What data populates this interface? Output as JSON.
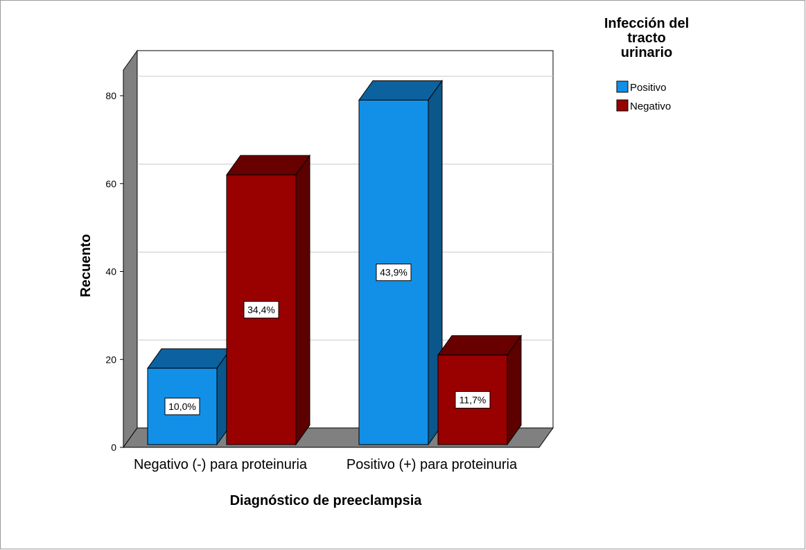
{
  "chart_data": {
    "type": "bar3d",
    "x_label": "Diagnóstico de preeclampsia",
    "y_label": "Recuento",
    "legend_title": "Infección del tracto urinario",
    "categories": [
      "Negativo (-) para proteinuria",
      "Positivo (+) para proteinuria"
    ],
    "series": [
      {
        "name": "Positivo",
        "color": "#1290e8",
        "values": [
          18,
          79
        ],
        "percentages": [
          10.0,
          43.9
        ],
        "percentage_labels": [
          "10,0%",
          "43,9%"
        ]
      },
      {
        "name": "Negativo",
        "color": "#990000",
        "values": [
          62,
          21
        ],
        "percentages": [
          34.4,
          11.7
        ],
        "percentage_labels": [
          "34,4%",
          "11,7%"
        ]
      }
    ],
    "ylim": [
      0,
      80
    ],
    "yticks": [
      0,
      20,
      40,
      60,
      80
    ],
    "grid": true,
    "legend": "right"
  }
}
